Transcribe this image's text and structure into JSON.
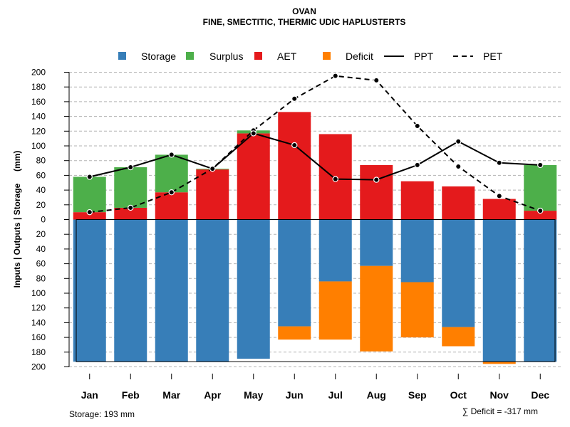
{
  "chart_data": {
    "type": "bar",
    "title": "OVAN",
    "subtitle": "FINE, SMECTITIC, THERMIC UDIC HAPLUSTERTS",
    "ylabel": "Inputs | Outputs | Storage     (mm)",
    "ylim": [
      -200,
      200
    ],
    "yticks": [
      200,
      180,
      160,
      140,
      120,
      100,
      80,
      60,
      40,
      20,
      0,
      20,
      40,
      60,
      80,
      100,
      120,
      140,
      160,
      180,
      200
    ],
    "categories": [
      "Jan",
      "Feb",
      "Mar",
      "Apr",
      "May",
      "Jun",
      "Jul",
      "Aug",
      "Sep",
      "Oct",
      "Nov",
      "Dec"
    ],
    "series": [
      {
        "name": "Storage",
        "color": "#377EB8",
        "values": [
          193,
          193,
          193,
          193,
          189,
          145,
          84,
          63,
          85,
          146,
          193,
          193
        ]
      },
      {
        "name": "Surplus",
        "color": "#4DAF4A",
        "values": [
          48,
          55,
          51,
          1,
          4,
          0,
          0,
          0,
          0,
          0,
          0,
          62
        ]
      },
      {
        "name": "AET",
        "color": "#E41A1C",
        "values": [
          10,
          16,
          37,
          68,
          117,
          146,
          116,
          74,
          52,
          45,
          28,
          12
        ]
      },
      {
        "name": "Deficit",
        "color": "#FF7F00",
        "values": [
          0,
          0,
          0,
          0,
          0,
          18,
          79,
          116,
          75,
          26,
          3,
          0
        ]
      },
      {
        "name": "PPT",
        "style": "solid",
        "values": [
          58,
          71,
          88,
          69,
          117,
          101,
          55,
          54,
          74,
          106,
          77,
          74
        ]
      },
      {
        "name": "PET",
        "style": "dashed",
        "values": [
          10,
          16,
          37,
          69,
          121,
          164,
          195,
          189,
          127,
          72,
          32,
          12
        ]
      }
    ],
    "legend": [
      "Storage",
      "Surplus",
      "AET",
      "Deficit",
      "PPT",
      "PET"
    ],
    "legend_position": "top",
    "grid": true,
    "storage_note": "Storage: 193 mm",
    "deficit_note": "∑ Deficit = -317 mm"
  }
}
